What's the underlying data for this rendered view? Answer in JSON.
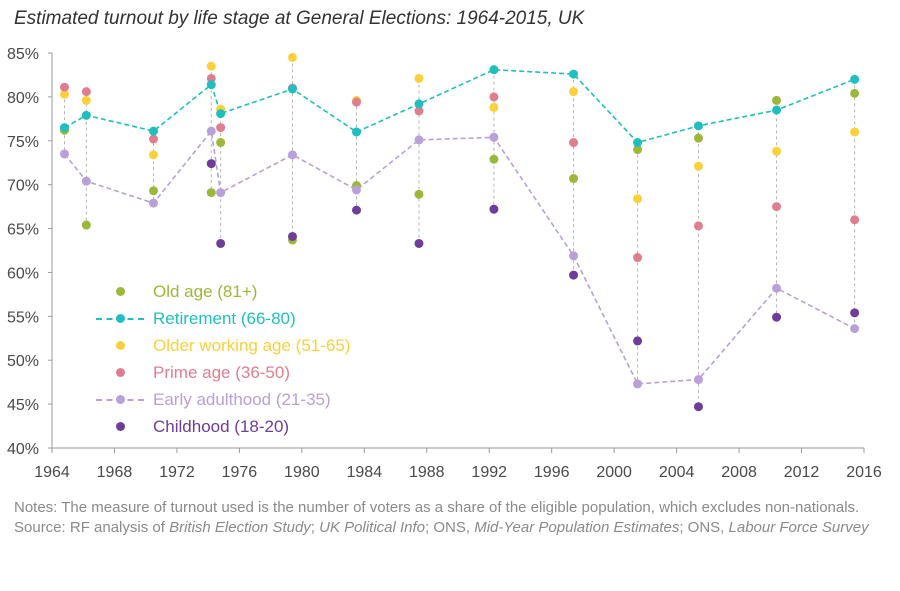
{
  "chart_data": {
    "type": "scatter",
    "title": "Estimated turnout by life stage at General Elections: 1964-2015, UK",
    "xlabel": "",
    "ylabel": "",
    "xlim": [
      1964,
      2016
    ],
    "ylim": [
      40,
      85
    ],
    "x_ticks": [
      "1964",
      "1968",
      "1972",
      "1976",
      "1980",
      "1984",
      "1988",
      "1992",
      "1996",
      "2000",
      "2004",
      "2008",
      "2012",
      "2016"
    ],
    "y_ticks": [
      "40%",
      "45%",
      "50%",
      "55%",
      "60%",
      "65%",
      "70%",
      "75%",
      "80%",
      "85%"
    ],
    "legend_position": "bottom-left",
    "grid": false,
    "x": [
      1964.8,
      1966.2,
      1970.5,
      1974.2,
      1974.8,
      1979.4,
      1983.5,
      1987.5,
      1992.3,
      1997.4,
      2001.5,
      2005.4,
      2010.4,
      2015.4
    ],
    "range_lines": "dashed vertical lines connect the highest and lowest value at each election",
    "series": [
      {
        "name": "Old age (81+)",
        "style": "markers",
        "color": "#9bb83a",
        "values": [
          76.2,
          65.4,
          69.3,
          69.1,
          74.8,
          63.7,
          69.9,
          68.9,
          72.9,
          70.7,
          74.0,
          75.3,
          79.6,
          80.4
        ]
      },
      {
        "name": "Retirement (66-80)",
        "style": "dashed-line-markers",
        "color": "#1fbfbf",
        "values": [
          76.5,
          77.9,
          76.1,
          81.4,
          78.1,
          80.9,
          76.0,
          79.2,
          83.1,
          82.6,
          74.8,
          76.7,
          78.5,
          82.0
        ]
      },
      {
        "name": "Older working age (51-65)",
        "style": "markers",
        "color": "#fbd03a",
        "values": [
          80.3,
          79.6,
          73.4,
          83.5,
          78.6,
          84.5,
          79.6,
          82.1,
          78.8,
          80.6,
          68.4,
          72.1,
          73.8,
          76.0
        ]
      },
      {
        "name": "Prime age (36-50)",
        "style": "markers",
        "color": "#e07e90",
        "values": [
          81.1,
          80.6,
          75.2,
          82.1,
          76.5,
          81.0,
          79.4,
          78.4,
          80.0,
          74.8,
          61.7,
          65.3,
          67.5,
          66.0
        ]
      },
      {
        "name": "Early adulthood (21-35)",
        "style": "dashed-line-markers",
        "color": "#b9a0d8",
        "values": [
          73.5,
          70.4,
          67.9,
          76.1,
          69.1,
          73.4,
          69.4,
          75.1,
          75.4,
          61.9,
          47.3,
          47.8,
          58.2,
          53.6
        ]
      },
      {
        "name": "Childhood (18-20)",
        "style": "markers",
        "color": "#6e3d99",
        "values": [
          null,
          null,
          null,
          72.4,
          63.3,
          64.1,
          67.1,
          63.3,
          67.2,
          59.7,
          52.2,
          44.7,
          54.9,
          55.4
        ]
      }
    ]
  },
  "notes": {
    "line1": "Notes: The measure of turnout used is the number of voters as a share of the eligible population, which excludes non-nationals.",
    "source_prefix": "Source: RF analysis of ",
    "source_bes": "British Election Study",
    "source_sep1": "; ",
    "source_ukpi": "UK Political Info",
    "source_sep2": "; ONS, ",
    "source_mype": "Mid-Year Population Estimates",
    "source_sep3": "; ONS, ",
    "source_lfs": "Labour Force Survey"
  },
  "colors": {
    "axis": "#9a9a9a",
    "tick_text": "#4a4a4a",
    "range_line": "#b5b5b5"
  }
}
